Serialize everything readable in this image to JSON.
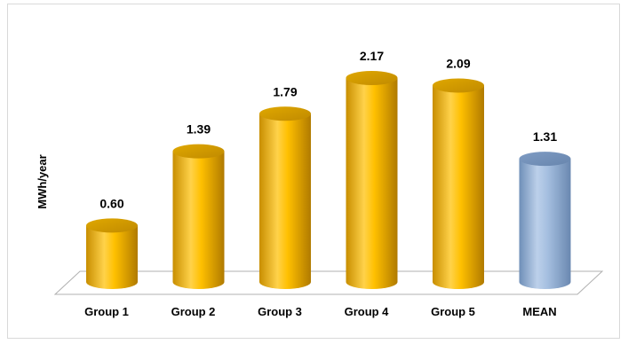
{
  "chart_data": {
    "type": "bar",
    "title": "",
    "xlabel": "",
    "ylabel": "MWh/year",
    "ylim": [
      0,
      2.3
    ],
    "categories": [
      "Group 1",
      "Group 2",
      "Group 3",
      "Group 4",
      "Group 5",
      "MEAN"
    ],
    "values": [
      0.6,
      1.39,
      1.79,
      2.17,
      2.09,
      1.31
    ],
    "data_labels": [
      "0.60",
      "1.39",
      "1.79",
      "2.17",
      "2.09",
      "1.31"
    ],
    "colors": [
      "#ffc000",
      "#ffc000",
      "#ffc000",
      "#ffc000",
      "#ffc000",
      "#95b3d7"
    ],
    "grid": false,
    "legend": "none",
    "bar_style": "3d-cylinder"
  }
}
